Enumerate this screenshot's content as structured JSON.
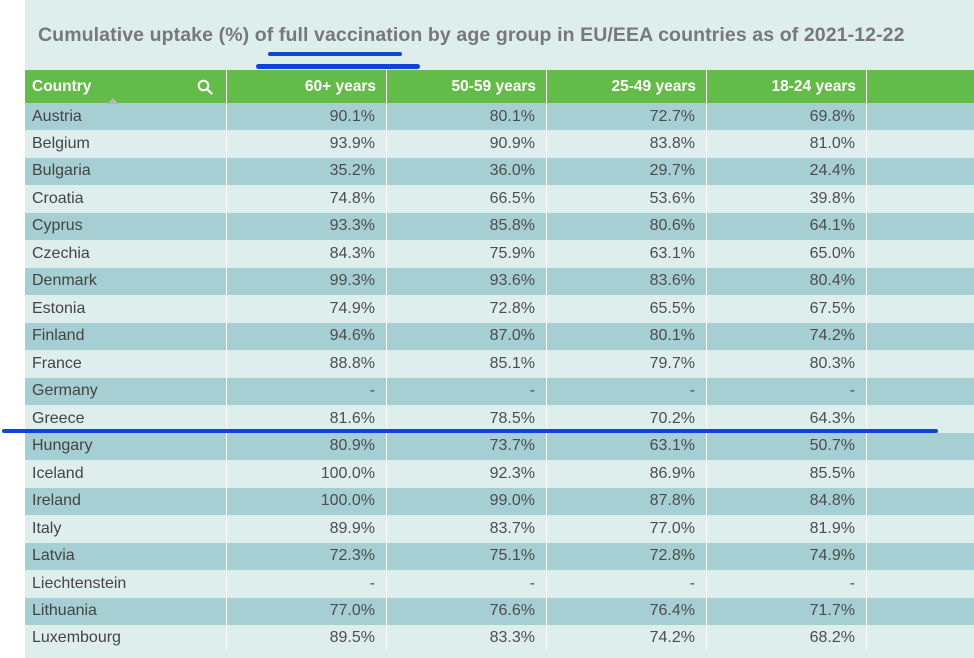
{
  "title": "Cumulative uptake (%) of full vaccination by age group in EU/EEA countries as of 2021-12-22",
  "table": {
    "headers": [
      "Country",
      "60+ years",
      "50-59 years",
      "25-49 years",
      "18-24 years"
    ],
    "rows": [
      [
        "Austria",
        "90.1%",
        "80.1%",
        "72.7%",
        "69.8%"
      ],
      [
        "Belgium",
        "93.9%",
        "90.9%",
        "83.8%",
        "81.0%"
      ],
      [
        "Bulgaria",
        "35.2%",
        "36.0%",
        "29.7%",
        "24.4%"
      ],
      [
        "Croatia",
        "74.8%",
        "66.5%",
        "53.6%",
        "39.8%"
      ],
      [
        "Cyprus",
        "93.3%",
        "85.8%",
        "80.6%",
        "64.1%"
      ],
      [
        "Czechia",
        "84.3%",
        "75.9%",
        "63.1%",
        "65.0%"
      ],
      [
        "Denmark",
        "99.3%",
        "93.6%",
        "83.6%",
        "80.4%"
      ],
      [
        "Estonia",
        "74.9%",
        "72.8%",
        "65.5%",
        "67.5%"
      ],
      [
        "Finland",
        "94.6%",
        "87.0%",
        "80.1%",
        "74.2%"
      ],
      [
        "France",
        "88.8%",
        "85.1%",
        "79.7%",
        "80.3%"
      ],
      [
        "Germany",
        "-",
        "-",
        "-",
        "-"
      ],
      [
        "Greece",
        "81.6%",
        "78.5%",
        "70.2%",
        "64.3%"
      ],
      [
        "Hungary",
        "80.9%",
        "73.7%",
        "63.1%",
        "50.7%"
      ],
      [
        "Iceland",
        "100.0%",
        "92.3%",
        "86.9%",
        "85.5%"
      ],
      [
        "Ireland",
        "100.0%",
        "99.0%",
        "87.8%",
        "84.8%"
      ],
      [
        "Italy",
        "89.9%",
        "83.7%",
        "77.0%",
        "81.9%"
      ],
      [
        "Latvia",
        "72.3%",
        "75.1%",
        "72.8%",
        "74.9%"
      ],
      [
        "Liechtenstein",
        "-",
        "-",
        "-",
        "-"
      ],
      [
        "Lithuania",
        "77.0%",
        "76.6%",
        "76.4%",
        "71.7%"
      ],
      [
        "Luxembourg",
        "89.5%",
        "83.3%",
        "74.2%",
        "68.2%"
      ]
    ]
  },
  "icons": {
    "search": "search-icon",
    "sort": "sort-ascending-icon"
  },
  "colors": {
    "header_bg": "#63bc47",
    "row_odd": "#a5cfd3",
    "row_even": "#deeeed",
    "annotation": "#1144d8"
  }
}
